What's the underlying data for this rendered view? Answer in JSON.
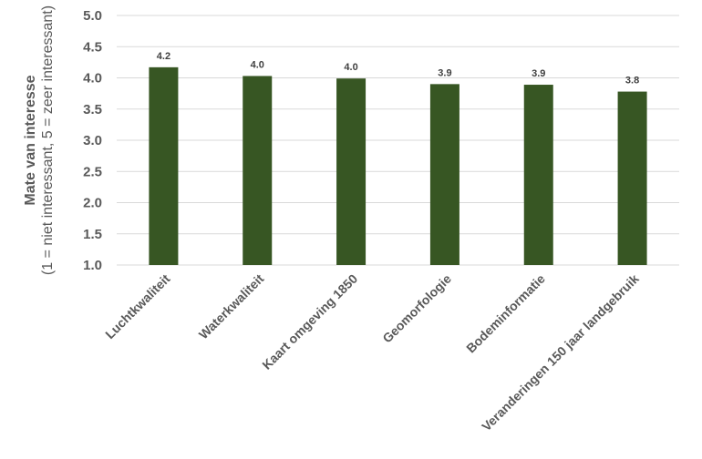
{
  "chart_data": {
    "type": "bar",
    "categories": [
      "Luchtkwaliteit",
      "Waterkwaliteit",
      "Kaart omgeving 1850",
      "Geomorfologie",
      "Bodeminformatie",
      "Veranderingen 150 jaar landgebruik"
    ],
    "values": [
      4.17,
      4.03,
      3.99,
      3.9,
      3.89,
      3.78
    ],
    "data_labels": [
      "4.2",
      "4.0",
      "4.0",
      "3.9",
      "3.9",
      "3.8"
    ],
    "ylabel": "Mate van interesse",
    "ylabel_sub": "(1 = niet interessant, 5 = zeer interessant)",
    "ylim": [
      1.0,
      5.0
    ],
    "yticks": [
      "1.0",
      "1.5",
      "2.0",
      "2.5",
      "3.0",
      "3.5",
      "4.0",
      "4.5",
      "5.0"
    ],
    "grid": true,
    "bar_color": "#375623"
  }
}
